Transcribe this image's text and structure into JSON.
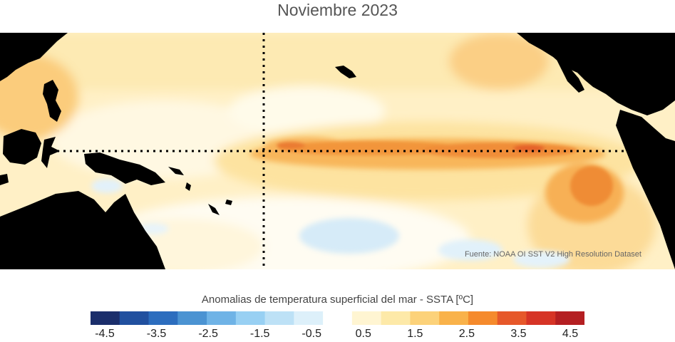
{
  "title": "Noviembre 2023",
  "map": {
    "source_text": "Fuente: NOAA OI SST V2 High Resolution Dataset",
    "reference_lines": "dotted equator and dateline",
    "land_color": "#000000",
    "warm_band": "equatorial Pacific warm anomaly",
    "cool_patch": "south-central Pacific cool anomaly"
  },
  "colorbar": {
    "label": "Anomalias de temperatura superficial del mar - SSTA  [ºC]",
    "colors": [
      "#1b2e6b",
      "#21509f",
      "#2c6dbe",
      "#4b93d2",
      "#6fb3e6",
      "#98d0f3",
      "#bde1f6",
      "#ddf0fa",
      "#ffffff",
      "#fff5d2",
      "#fde9a8",
      "#fcd27a",
      "#f9b24a",
      "#f58a2c",
      "#e6582a",
      "#d63426",
      "#b41f22"
    ],
    "ticks": [
      "-4.5",
      "-3.5",
      "-2.5",
      "-1.5",
      "-0.5",
      "0.5",
      "1.5",
      "2.5",
      "3.5",
      "4.5"
    ]
  }
}
